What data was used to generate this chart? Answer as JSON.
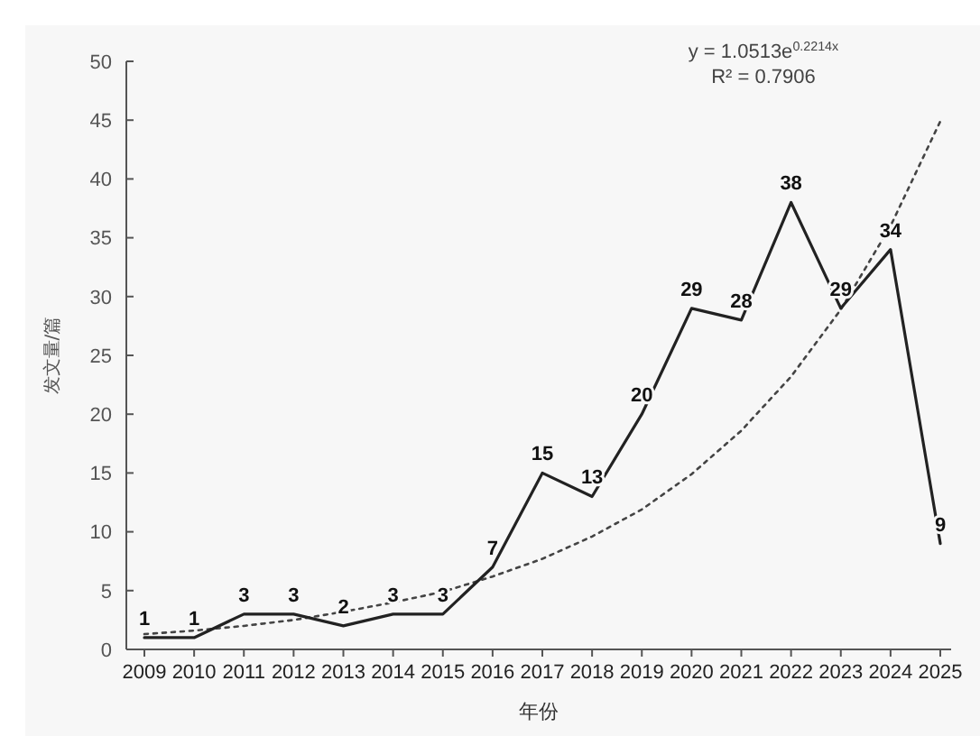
{
  "chart_data": {
    "type": "line",
    "xlabel": "年份",
    "ylabel": "发文量/篇",
    "categories": [
      "2009",
      "2010",
      "2011",
      "2012",
      "2013",
      "2014",
      "2015",
      "2016",
      "2017",
      "2018",
      "2019",
      "2020",
      "2021",
      "2022",
      "2023",
      "2024",
      "2025"
    ],
    "series": [
      {
        "color": "#222222",
        "values": [
          1,
          1,
          3,
          3,
          2,
          3,
          3,
          7,
          15,
          13,
          20,
          29,
          28,
          38,
          29,
          34,
          9
        ],
        "data_labels": true,
        "line_style": "solid"
      },
      {
        "type": "line",
        "color": "#444444",
        "line_style": "dotted",
        "values": [
          1.3,
          1.6,
          2.0,
          2.5,
          3.2,
          4.0,
          4.9,
          6.2,
          7.7,
          9.6,
          11.9,
          14.9,
          18.6,
          23.2,
          28.9,
          36.0,
          44.9
        ]
      }
    ],
    "annotations": [
      "y = 1.0513e$^{0.2214x}$",
      "R² = 0.7906"
    ],
    "ylim": [
      0,
      50
    ],
    "yticks": [
      0,
      5,
      10,
      15,
      20,
      25,
      30,
      35,
      40,
      45,
      50
    ],
    "grid": false,
    "marker": "none"
  }
}
